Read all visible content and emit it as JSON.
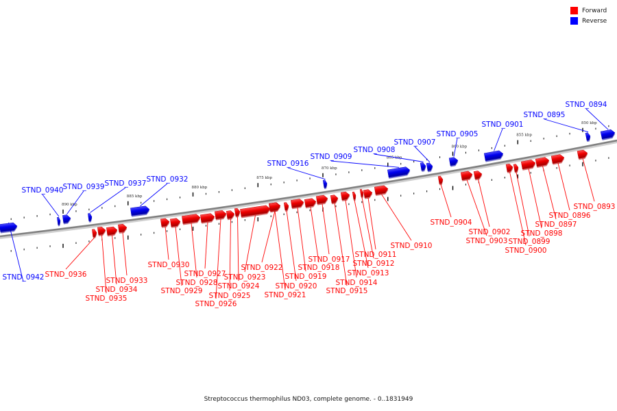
{
  "legend": {
    "forward_label": "Forward",
    "reverse_label": "Reverse",
    "forward_color": "#ff0000",
    "reverse_color": "#0000ff"
  },
  "caption": "Streptococcus thermophilus ND03, complete genome. - 0..1831949",
  "ticks": [
    {
      "kbp": 850,
      "label": "850 kbp"
    },
    {
      "kbp": 855,
      "label": "855 kbp"
    },
    {
      "kbp": 860,
      "label": "860 kbp"
    },
    {
      "kbp": 865,
      "label": "865 kbp"
    },
    {
      "kbp": 870,
      "label": "870 kbp"
    },
    {
      "kbp": 875,
      "label": "875 kbp"
    },
    {
      "kbp": 880,
      "label": "880 kbp"
    },
    {
      "kbp": 885,
      "label": "885 kbp"
    },
    {
      "kbp": 890,
      "label": "890 kbp"
    }
  ],
  "genes": [
    {
      "name": "STND_0893",
      "strand": "forward"
    },
    {
      "name": "STND_0894",
      "strand": "reverse"
    },
    {
      "name": "STND_0895",
      "strand": "reverse"
    },
    {
      "name": "STND_0896",
      "strand": "forward"
    },
    {
      "name": "STND_0897",
      "strand": "forward"
    },
    {
      "name": "STND_0898",
      "strand": "forward"
    },
    {
      "name": "STND_0899",
      "strand": "forward"
    },
    {
      "name": "STND_0900",
      "strand": "forward"
    },
    {
      "name": "STND_0901",
      "strand": "reverse"
    },
    {
      "name": "STND_0902",
      "strand": "forward"
    },
    {
      "name": "STND_0903",
      "strand": "forward"
    },
    {
      "name": "STND_0904",
      "strand": "forward"
    },
    {
      "name": "STND_0905",
      "strand": "reverse"
    },
    {
      "name": "STND_0907",
      "strand": "reverse"
    },
    {
      "name": "STND_0908",
      "strand": "reverse"
    },
    {
      "name": "STND_0909",
      "strand": "reverse"
    },
    {
      "name": "STND_0910",
      "strand": "forward"
    },
    {
      "name": "STND_0911",
      "strand": "forward"
    },
    {
      "name": "STND_0912",
      "strand": "forward"
    },
    {
      "name": "STND_0913",
      "strand": "forward"
    },
    {
      "name": "STND_0914",
      "strand": "forward"
    },
    {
      "name": "STND_0915",
      "strand": "forward"
    },
    {
      "name": "STND_0916",
      "strand": "reverse"
    },
    {
      "name": "STND_0917",
      "strand": "forward"
    },
    {
      "name": "STND_0918",
      "strand": "forward"
    },
    {
      "name": "STND_0919",
      "strand": "forward"
    },
    {
      "name": "STND_0920",
      "strand": "forward"
    },
    {
      "name": "STND_0921",
      "strand": "forward"
    },
    {
      "name": "STND_0922",
      "strand": "forward"
    },
    {
      "name": "STND_0923",
      "strand": "forward"
    },
    {
      "name": "STND_0924",
      "strand": "forward"
    },
    {
      "name": "STND_0925",
      "strand": "forward"
    },
    {
      "name": "STND_0926",
      "strand": "forward"
    },
    {
      "name": "STND_0927",
      "strand": "forward"
    },
    {
      "name": "STND_0928",
      "strand": "forward"
    },
    {
      "name": "STND_0929",
      "strand": "forward"
    },
    {
      "name": "STND_0930",
      "strand": "forward"
    },
    {
      "name": "STND_0932",
      "strand": "reverse"
    },
    {
      "name": "STND_0933",
      "strand": "forward"
    },
    {
      "name": "STND_0934",
      "strand": "forward"
    },
    {
      "name": "STND_0935",
      "strand": "forward"
    },
    {
      "name": "STND_0936",
      "strand": "forward"
    },
    {
      "name": "STND_0937",
      "strand": "reverse"
    },
    {
      "name": "STND_0939",
      "strand": "reverse"
    },
    {
      "name": "STND_0940",
      "strand": "reverse"
    },
    {
      "name": "STND_0942",
      "strand": "reverse"
    }
  ]
}
